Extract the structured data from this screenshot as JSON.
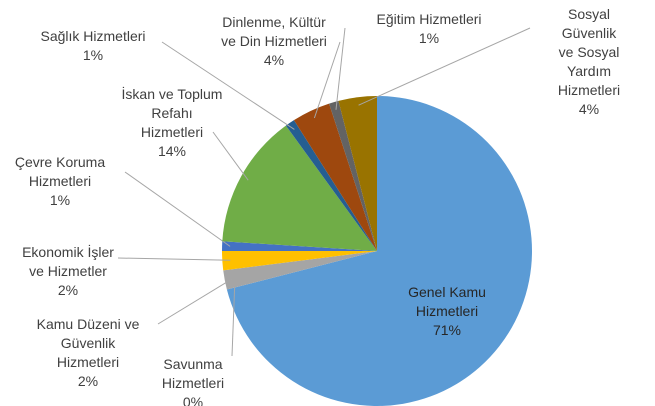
{
  "chart_data": {
    "type": "pie",
    "categories": [
      "Genel Kamu\nHizmetleri",
      "Savunma\nHizmetleri",
      "Kamu Düzeni ve\nGüvenlik\nHizmetleri",
      "Ekonomik İşler\nve Hizmetler",
      "Çevre Koruma\nHizmetleri",
      "İskan ve Toplum\nRefahı\nHizmetleri",
      "Sağlık Hizmetleri",
      "Dinlenme, Kültür\nve Din Hizmetleri",
      "Eğitim Hizmetleri",
      "Sosyal Güvenlik\nve Sosyal\nYardım\nHizmetleri"
    ],
    "values": [
      71,
      0,
      2,
      2,
      1,
      14,
      1,
      4,
      1,
      4
    ],
    "value_labels": [
      "71%",
      "0%",
      "2%",
      "2%",
      "1%",
      "14%",
      "1%",
      "4%",
      "1%",
      "4%"
    ],
    "colors": [
      "#5b9bd5",
      "#ed7d31",
      "#a5a5a5",
      "#ffc000",
      "#4472c4",
      "#70ad47",
      "#255e91",
      "#9e480e",
      "#636363",
      "#997300"
    ]
  }
}
